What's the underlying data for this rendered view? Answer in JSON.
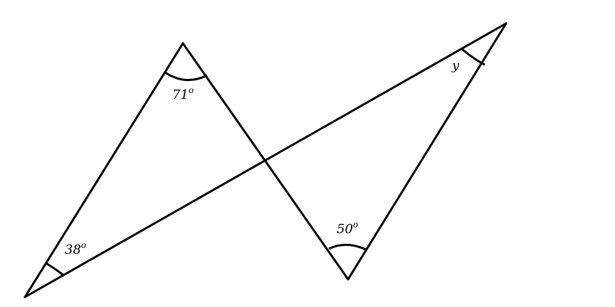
{
  "diagram": {
    "line_color": "#000000",
    "background": "#ffffff",
    "angles": {
      "top": {
        "value": "71",
        "unit": "o"
      },
      "bottom_left": {
        "value": "38",
        "unit": "o"
      },
      "bottom_middle": {
        "value": "50",
        "unit": "o"
      },
      "top_right": {
        "value": "y"
      }
    }
  }
}
